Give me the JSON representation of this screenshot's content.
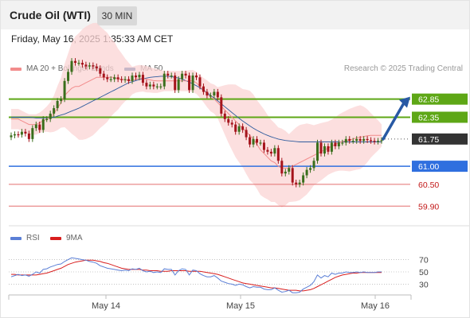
{
  "header": {
    "title": "Crude Oil (WTI)",
    "timeframe": "30 MIN"
  },
  "timestamp": "Friday, May 16, 2025 1:35:33 AM CET",
  "legend": {
    "ma20": {
      "label": "MA 20 + Bollinger Bands",
      "color": "#f28c8c"
    },
    "ma50": {
      "label": "MA 50",
      "color": "#2f5c9e"
    }
  },
  "credit": "Research © 2025 Trading Central",
  "rsi_legend": {
    "rsi": {
      "label": "RSI",
      "color": "#5b7fd6"
    },
    "ma9": {
      "label": "9MA",
      "color": "#d81e1e"
    }
  },
  "colors": {
    "up_candle": "#3a6e1c",
    "down_candle": "#a5141c",
    "support_line": "#2f6fdf",
    "resistance_line": "#5ea716",
    "thin_level": "#e36f6f"
  },
  "chart_data": [
    {
      "type": "candlestick",
      "x_axis": {
        "ticks": [
          "May 14",
          "May 15",
          "May 16"
        ]
      },
      "y_axis_range": [
        59.6,
        63.5
      ],
      "arrow_target": 62.85,
      "current_price": 61.75,
      "levels": [
        {
          "label": "62.85",
          "value": 62.85,
          "kind": "resistance"
        },
        {
          "label": "62.35",
          "value": 62.35,
          "kind": "resistance"
        },
        {
          "label": "61.75",
          "value": 61.75,
          "kind": "pivot"
        },
        {
          "label": "61.00",
          "value": 61.0,
          "kind": "support"
        },
        {
          "label": "60.50",
          "value": 60.5,
          "kind": "support-minor"
        },
        {
          "label": "59.90",
          "value": 59.9,
          "kind": "support-minor"
        }
      ],
      "closes": [
        61.85,
        61.88,
        61.87,
        61.95,
        61.9,
        61.75,
        62.05,
        62.15,
        62.0,
        62.3,
        62.3,
        62.45,
        62.6,
        62.8,
        62.85,
        63.35,
        63.6,
        63.9,
        63.85,
        63.85,
        63.8,
        63.75,
        63.78,
        63.75,
        63.7,
        63.55,
        63.45,
        63.4,
        63.4,
        63.45,
        63.4,
        63.38,
        63.4,
        63.35,
        63.5,
        63.45,
        63.52,
        63.3,
        63.2,
        63.25,
        63.2,
        63.2,
        63.2,
        63.55,
        63.5,
        63.5,
        63.1,
        63.4,
        63.55,
        63.5,
        63.1,
        63.5,
        63.45,
        63.2,
        63.05,
        62.95,
        62.95,
        63.05,
        62.9,
        62.45,
        62.3,
        62.2,
        62.15,
        61.95,
        62.1,
        62.0,
        61.8,
        61.6,
        61.75,
        61.65,
        61.65,
        61.45,
        61.4,
        61.35,
        61.5,
        61.15,
        60.8,
        60.85,
        60.95,
        60.55,
        60.5,
        60.55,
        60.75,
        60.9,
        60.95,
        61.15,
        61.65,
        61.35,
        61.55,
        61.4,
        61.65,
        61.55,
        61.65,
        61.65,
        61.75,
        61.7,
        61.7,
        61.75,
        61.7,
        61.75,
        61.72,
        61.7,
        61.68,
        61.7,
        61.72
      ],
      "series": [
        {
          "name": "MA 20",
          "values": [
            62.3,
            62.3,
            62.3,
            62.25,
            62.2,
            62.15,
            62.15,
            62.15,
            62.2,
            62.25,
            62.3,
            62.35,
            62.45,
            62.6,
            62.75,
            62.95,
            63.05,
            63.15,
            63.2,
            63.2,
            63.25,
            63.3,
            63.35,
            63.4,
            63.45,
            63.45,
            63.45,
            63.45,
            63.45,
            63.45,
            63.4,
            63.4,
            63.38,
            63.36,
            63.36,
            63.4,
            63.42,
            63.42,
            63.4,
            63.38,
            63.36,
            63.35,
            63.35,
            63.35,
            63.35,
            63.35,
            63.35,
            63.35,
            63.35,
            63.35,
            63.35,
            63.35,
            63.3,
            63.2,
            63.1,
            63.0,
            62.9,
            62.85,
            62.75,
            62.65,
            62.55,
            62.45,
            62.35,
            62.25,
            62.15,
            62.05,
            61.95,
            61.85,
            61.75,
            61.6,
            61.45,
            61.35,
            61.25,
            61.15,
            61.1,
            61.0,
            60.95,
            60.95,
            60.95,
            61.0,
            61.05,
            61.1,
            61.15,
            61.2,
            61.25,
            61.3,
            61.35,
            61.4,
            61.45,
            61.5,
            61.55,
            61.6,
            61.65,
            61.68,
            61.7,
            61.72,
            61.75,
            61.78,
            61.8,
            61.82,
            61.84,
            61.85,
            61.85,
            61.85,
            61.85
          ]
        },
        {
          "name": "MA 50",
          "values": [
            62.35,
            62.35,
            62.35,
            62.35,
            62.35,
            62.35,
            62.34,
            62.33,
            62.33,
            62.33,
            62.33,
            62.34,
            62.35,
            62.38,
            62.41,
            62.44,
            62.48,
            62.52,
            62.56,
            62.6,
            62.65,
            62.7,
            62.75,
            62.8,
            62.85,
            62.9,
            62.95,
            63.0,
            63.05,
            63.1,
            63.15,
            63.2,
            63.25,
            63.3,
            63.33,
            63.36,
            63.39,
            63.41,
            63.43,
            63.45,
            63.46,
            63.47,
            63.48,
            63.48,
            63.48,
            63.47,
            63.45,
            63.43,
            63.4,
            63.36,
            63.32,
            63.27,
            63.22,
            63.16,
            63.1,
            63.03,
            62.95,
            62.88,
            62.8,
            62.72,
            62.64,
            62.56,
            62.48,
            62.4,
            62.32,
            62.25,
            62.18,
            62.11,
            62.05,
            61.99,
            61.94,
            61.89,
            61.85,
            61.81,
            61.78,
            61.75,
            61.73,
            61.71,
            61.7,
            61.69,
            61.68,
            61.67,
            61.67,
            61.67,
            61.67,
            61.67,
            61.67,
            61.67,
            61.67,
            61.67,
            61.67,
            61.67,
            61.67,
            61.67,
            61.67,
            61.67,
            61.67,
            61.67,
            61.67,
            61.67,
            61.67,
            61.67,
            61.67,
            61.67,
            61.67
          ]
        }
      ]
    },
    {
      "type": "line",
      "y_ticks": [
        70,
        50,
        30
      ],
      "ylim": [
        15,
        85
      ],
      "series": [
        {
          "name": "RSI",
          "values": [
            42,
            44,
            46,
            44,
            45,
            43,
            46,
            50,
            48,
            54,
            55,
            58,
            60,
            62,
            63,
            67,
            70,
            73,
            72,
            71,
            70,
            69,
            67,
            66,
            64,
            60,
            58,
            56,
            55,
            54,
            53,
            52,
            53,
            52,
            55,
            54,
            56,
            52,
            50,
            51,
            49,
            50,
            49,
            55,
            54,
            54,
            45,
            52,
            55,
            54,
            45,
            53,
            52,
            47,
            44,
            42,
            42,
            44,
            40,
            35,
            33,
            31,
            30,
            28,
            30,
            29,
            26,
            24,
            26,
            25,
            25,
            22,
            21,
            21,
            24,
            20,
            17,
            18,
            20,
            16,
            16,
            17,
            22,
            25,
            28,
            34,
            45,
            40,
            44,
            42,
            48,
            46,
            48,
            48,
            50,
            49,
            49,
            50,
            49,
            50,
            49,
            49,
            49,
            50,
            50
          ]
        },
        {
          "name": "9MA",
          "values": [
            46,
            46,
            45,
            45,
            45,
            45,
            45,
            45,
            46,
            47,
            48,
            50,
            52,
            54,
            56,
            59,
            62,
            64,
            66,
            67,
            68,
            69,
            69,
            69,
            68,
            67,
            65,
            64,
            62,
            60,
            58,
            56,
            55,
            54,
            54,
            54,
            54,
            53,
            53,
            52,
            52,
            52,
            51,
            51,
            51,
            52,
            52,
            52,
            52,
            52,
            51,
            51,
            51,
            51,
            50,
            49,
            48,
            47,
            46,
            44,
            42,
            40,
            38,
            36,
            34,
            32,
            31,
            30,
            29,
            28,
            27,
            26,
            25,
            24,
            24,
            23,
            22,
            21,
            20,
            20,
            20,
            19,
            19,
            20,
            21,
            23,
            26,
            29,
            32,
            35,
            38,
            41,
            43,
            45,
            46,
            47,
            48,
            48,
            49,
            49,
            49,
            49,
            49,
            49,
            49
          ]
        }
      ]
    }
  ]
}
